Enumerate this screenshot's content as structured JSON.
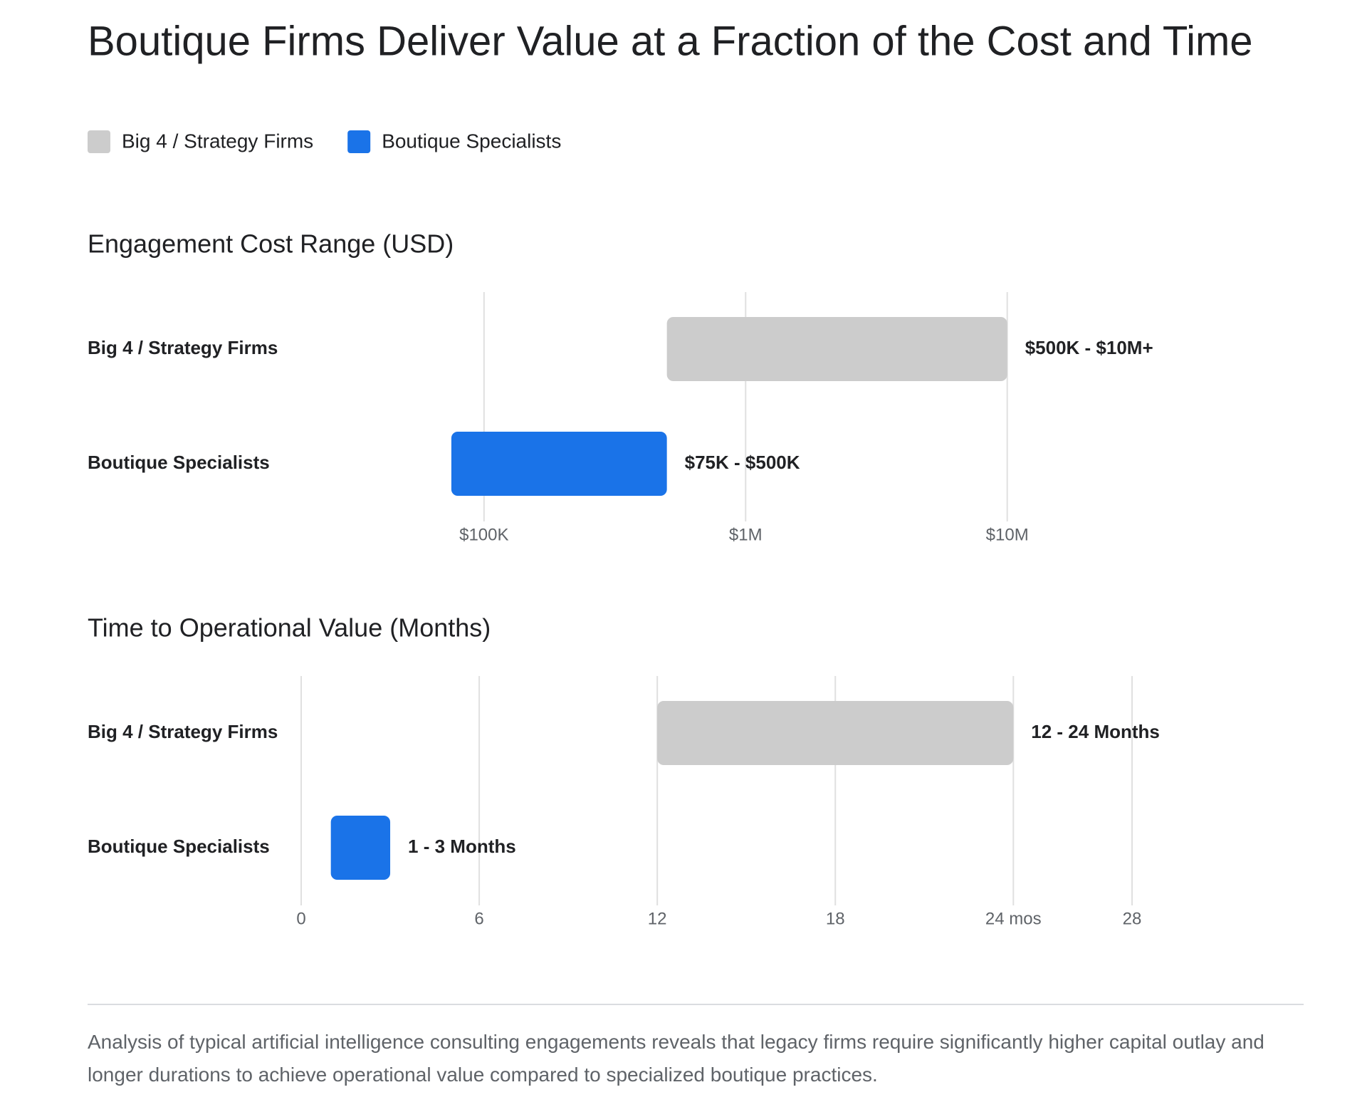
{
  "title": "Boutique Firms Deliver Value at a Fraction of the Cost and Time",
  "legend": [
    {
      "name": "Big 4 / Strategy Firms",
      "color": "#cccccc"
    },
    {
      "name": "Boutique Specialists",
      "color": "#1a73e8"
    }
  ],
  "chart_data": [
    {
      "type": "range-bar",
      "title": "Engagement Cost Range (USD)",
      "log_scale": true,
      "grid": true,
      "categories": [
        "Big 4 / Strategy Firms",
        "Boutique Specialists"
      ],
      "low": [
        500000,
        75000
      ],
      "high": [
        10000000,
        500000
      ],
      "colors": [
        "#cccccc",
        "#1a73e8"
      ],
      "value_labels": [
        "$500K - $10M+",
        "$75K - $500K"
      ],
      "xlim": [
        20000,
        30000000
      ],
      "xticks": [
        {
          "value": 100000,
          "label": "$100K"
        },
        {
          "value": 1000000,
          "label": "$1M"
        },
        {
          "value": 10000000,
          "label": "$10M"
        }
      ]
    },
    {
      "type": "range-bar",
      "title": "Time to Operational Value (Months)",
      "log_scale": false,
      "grid": true,
      "categories": [
        "Big 4 / Strategy Firms",
        "Boutique Specialists"
      ],
      "low": [
        12,
        1
      ],
      "high": [
        24,
        3
      ],
      "colors": [
        "#cccccc",
        "#1a73e8"
      ],
      "value_labels": [
        "12 - 24 Months",
        "1 - 3 Months"
      ],
      "xlim": [
        0,
        28
      ],
      "xticks": [
        0,
        6,
        12,
        18,
        {
          "value": 24,
          "label": "24 mos"
        },
        28
      ]
    }
  ],
  "footnote": "Analysis of typical artificial intelligence consulting engagements reveals that legacy firms require significantly higher capital outlay and longer durations to achieve operational value compared to specialized boutique practices."
}
